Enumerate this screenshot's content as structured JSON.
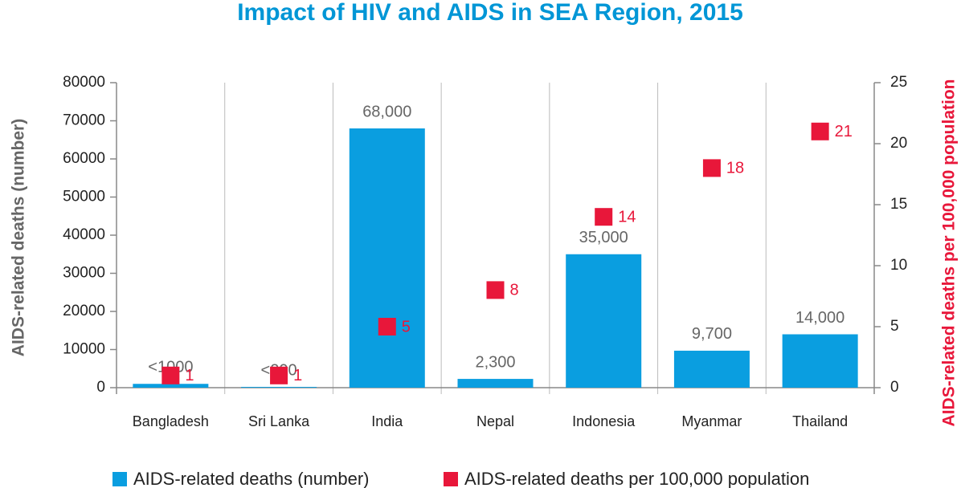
{
  "chart_data": {
    "type": "bar",
    "title": "Impact of HIV and AIDS in SEA Region, 2015",
    "y_label": "AIDS-related deaths (number)",
    "y2_label": "AIDS-related deaths per 100,000 population",
    "categories": [
      "Bangladesh",
      "Sri Lanka",
      "India",
      "Nepal",
      "Indonesia",
      "Myanmar",
      "Thailand"
    ],
    "series": [
      {
        "name": "AIDS-related deaths (number)",
        "type": "bar",
        "color": "#0a9ee0",
        "values": [
          1000,
          200,
          68000,
          2300,
          35000,
          9700,
          14000
        ],
        "value_labels": [
          "<1000",
          "<200",
          "68,000",
          "2,300",
          "35,000",
          "9,700",
          "14,000"
        ]
      },
      {
        "name": "AIDS-related deaths per 100,000 population",
        "type": "scatter",
        "axis": "y2",
        "color": "#e8173a",
        "values": [
          1,
          1,
          5,
          8,
          14,
          18,
          21
        ]
      }
    ],
    "ylim": [
      0,
      80000
    ],
    "yticks": [
      0,
      10000,
      20000,
      30000,
      40000,
      50000,
      60000,
      70000,
      80000
    ],
    "y2lim": [
      0,
      25
    ],
    "y2ticks": [
      0,
      5,
      10,
      15,
      20,
      25
    ],
    "legend": "bottom"
  }
}
